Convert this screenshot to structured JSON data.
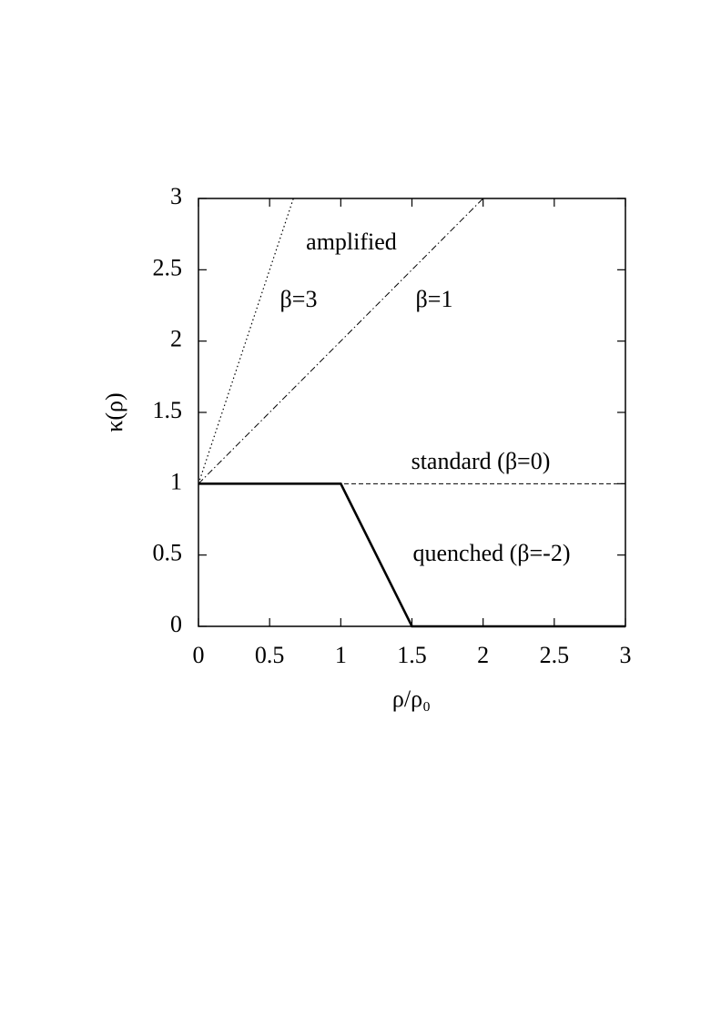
{
  "chart_data": {
    "type": "line",
    "xlabel": "ρ/ρ₀",
    "ylabel": "κ(ρ)",
    "xlim": [
      0,
      3
    ],
    "ylim": [
      0,
      3
    ],
    "xticks": [
      0,
      0.5,
      1,
      1.5,
      2,
      2.5,
      3
    ],
    "yticks": [
      0,
      0.5,
      1,
      1.5,
      2,
      2.5,
      3
    ],
    "annotations": [
      "amplified"
    ],
    "series": [
      {
        "name": "β=3",
        "color": "#000000",
        "style": "dotted",
        "x": [
          0,
          0.667
        ],
        "values": [
          1,
          3
        ]
      },
      {
        "name": "β=1",
        "color": "#000000",
        "style": "dashdot",
        "x": [
          0,
          2
        ],
        "values": [
          1,
          3
        ]
      },
      {
        "name": "standard (β=0)",
        "color": "#000000",
        "style": "dashed",
        "x": [
          0,
          3
        ],
        "values": [
          1,
          1
        ]
      },
      {
        "name": "quenched (β=-2)",
        "color": "#000000",
        "style": "solid",
        "x": [
          0,
          1,
          1.5,
          3
        ],
        "values": [
          1,
          1,
          0,
          0
        ]
      }
    ]
  }
}
